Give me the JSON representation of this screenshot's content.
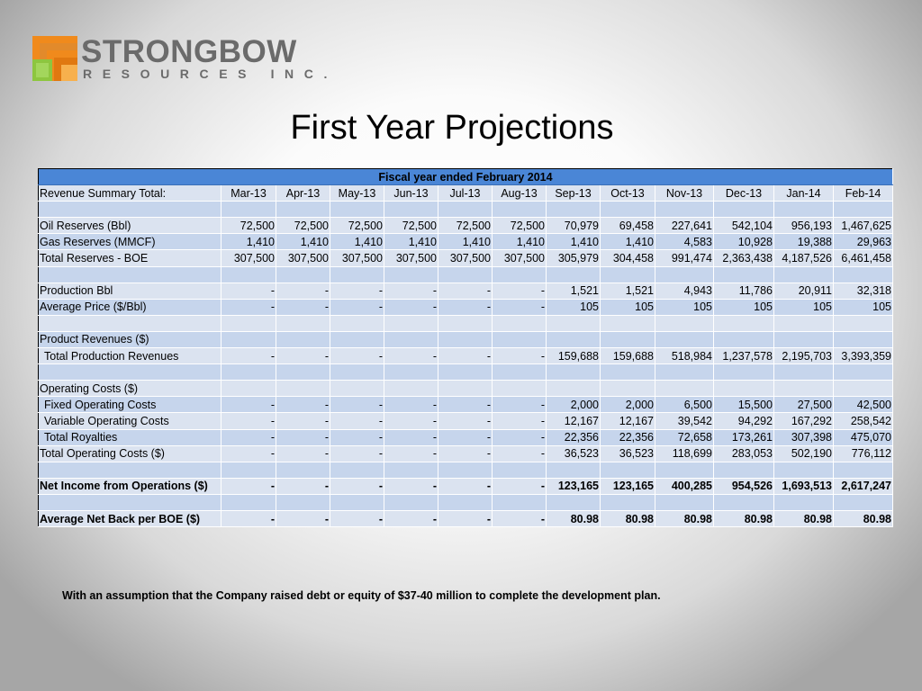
{
  "logo": {
    "title": "STRONGBOW",
    "subtitle": "RESOURCES INC.",
    "colors": {
      "orange": "#f08a1c",
      "green": "#8dc63f",
      "gray": "#6b6b6b"
    }
  },
  "page_title": "First Year Projections",
  "table": {
    "header": "Fiscal year ended February 2014",
    "header_color": "#4a86d6",
    "row_colors": [
      "#dbe3f0",
      "#c6d5ec"
    ],
    "months_label": "Revenue Summary Total:",
    "months": [
      "Mar-13",
      "Apr-13",
      "May-13",
      "Jun-13",
      "Jul-13",
      "Aug-13",
      "Sep-13",
      "Oct-13",
      "Nov-13",
      "Dec-13",
      "Jan-14",
      "Feb-14"
    ],
    "rows": [
      {
        "label": "",
        "values": [
          "",
          "",
          "",
          "",
          "",
          "",
          "",
          "",
          "",
          "",
          "",
          ""
        ]
      },
      {
        "label": "Oil Reserves (Bbl)",
        "values": [
          "72,500",
          "72,500",
          "72,500",
          "72,500",
          "72,500",
          "72,500",
          "70,979",
          "69,458",
          "227,641",
          "542,104",
          "956,193",
          "1,467,625"
        ]
      },
      {
        "label": "Gas Reserves (MMCF)",
        "values": [
          "1,410",
          "1,410",
          "1,410",
          "1,410",
          "1,410",
          "1,410",
          "1,410",
          "1,410",
          "4,583",
          "10,928",
          "19,388",
          "29,963"
        ]
      },
      {
        "label": "Total Reserves - BOE",
        "values": [
          "307,500",
          "307,500",
          "307,500",
          "307,500",
          "307,500",
          "307,500",
          "305,979",
          "304,458",
          "991,474",
          "2,363,438",
          "4,187,526",
          "6,461,458"
        ]
      },
      {
        "label": "",
        "values": [
          "",
          "",
          "",
          "",
          "",
          "",
          "",
          "",
          "",
          "",
          "",
          ""
        ]
      },
      {
        "label": "Production Bbl",
        "values": [
          "-",
          "-",
          "-",
          "-",
          "-",
          "-",
          "1,521",
          "1,521",
          "4,943",
          "11,786",
          "20,911",
          "32,318"
        ]
      },
      {
        "label": "Average Price ($/Bbl)",
        "values": [
          "-",
          "-",
          "-",
          "-",
          "-",
          "-",
          "105",
          "105",
          "105",
          "105",
          "105",
          "105"
        ]
      },
      {
        "label": "",
        "values": [
          "",
          "",
          "",
          "",
          "",
          "",
          "",
          "",
          "",
          "",
          "",
          ""
        ]
      },
      {
        "label": "Product Revenues ($)",
        "values": [
          "",
          "",
          "",
          "",
          "",
          "",
          "",
          "",
          "",
          "",
          "",
          ""
        ]
      },
      {
        "label": "Total Production Revenues",
        "indent": true,
        "values": [
          "-",
          "-",
          "-",
          "-",
          "-",
          "-",
          "159,688",
          "159,688",
          "518,984",
          "1,237,578",
          "2,195,703",
          "3,393,359"
        ]
      },
      {
        "label": "",
        "values": [
          "",
          "",
          "",
          "",
          "",
          "",
          "",
          "",
          "",
          "",
          "",
          ""
        ]
      },
      {
        "label": "Operating Costs ($)",
        "values": [
          "",
          "",
          "",
          "",
          "",
          "",
          "",
          "",
          "",
          "",
          "",
          ""
        ]
      },
      {
        "label": "Fixed Operating Costs",
        "indent": true,
        "values": [
          "-",
          "-",
          "-",
          "-",
          "-",
          "-",
          "2,000",
          "2,000",
          "6,500",
          "15,500",
          "27,500",
          "42,500"
        ]
      },
      {
        "label": "Variable Operating Costs",
        "indent": true,
        "values": [
          "-",
          "-",
          "-",
          "-",
          "-",
          "-",
          "12,167",
          "12,167",
          "39,542",
          "94,292",
          "167,292",
          "258,542"
        ]
      },
      {
        "label": "Total Royalties",
        "indent": true,
        "values": [
          "-",
          "-",
          "-",
          "-",
          "-",
          "-",
          "22,356",
          "22,356",
          "72,658",
          "173,261",
          "307,398",
          "475,070"
        ]
      },
      {
        "label": "Total Operating Costs ($)",
        "values": [
          "-",
          "-",
          "-",
          "-",
          "-",
          "-",
          "36,523",
          "36,523",
          "118,699",
          "283,053",
          "502,190",
          "776,112"
        ]
      },
      {
        "label": "",
        "values": [
          "",
          "",
          "",
          "",
          "",
          "",
          "",
          "",
          "",
          "",
          "",
          ""
        ]
      },
      {
        "label": "Net Income from Operations ($)",
        "bold": true,
        "values": [
          "-",
          "-",
          "-",
          "-",
          "-",
          "-",
          "123,165",
          "123,165",
          "400,285",
          "954,526",
          "1,693,513",
          "2,617,247"
        ]
      },
      {
        "label": "",
        "values": [
          "",
          "",
          "",
          "",
          "",
          "",
          "",
          "",
          "",
          "",
          "",
          ""
        ]
      },
      {
        "label": "Average Net Back per BOE ($)",
        "bold": true,
        "values": [
          "-",
          "-",
          "-",
          "-",
          "-",
          "-",
          "80.98",
          "80.98",
          "80.98",
          "80.98",
          "80.98",
          "80.98"
        ]
      }
    ]
  },
  "footnote": "With an assumption that the Company raised debt or equity of $37-40 million to complete the development plan."
}
